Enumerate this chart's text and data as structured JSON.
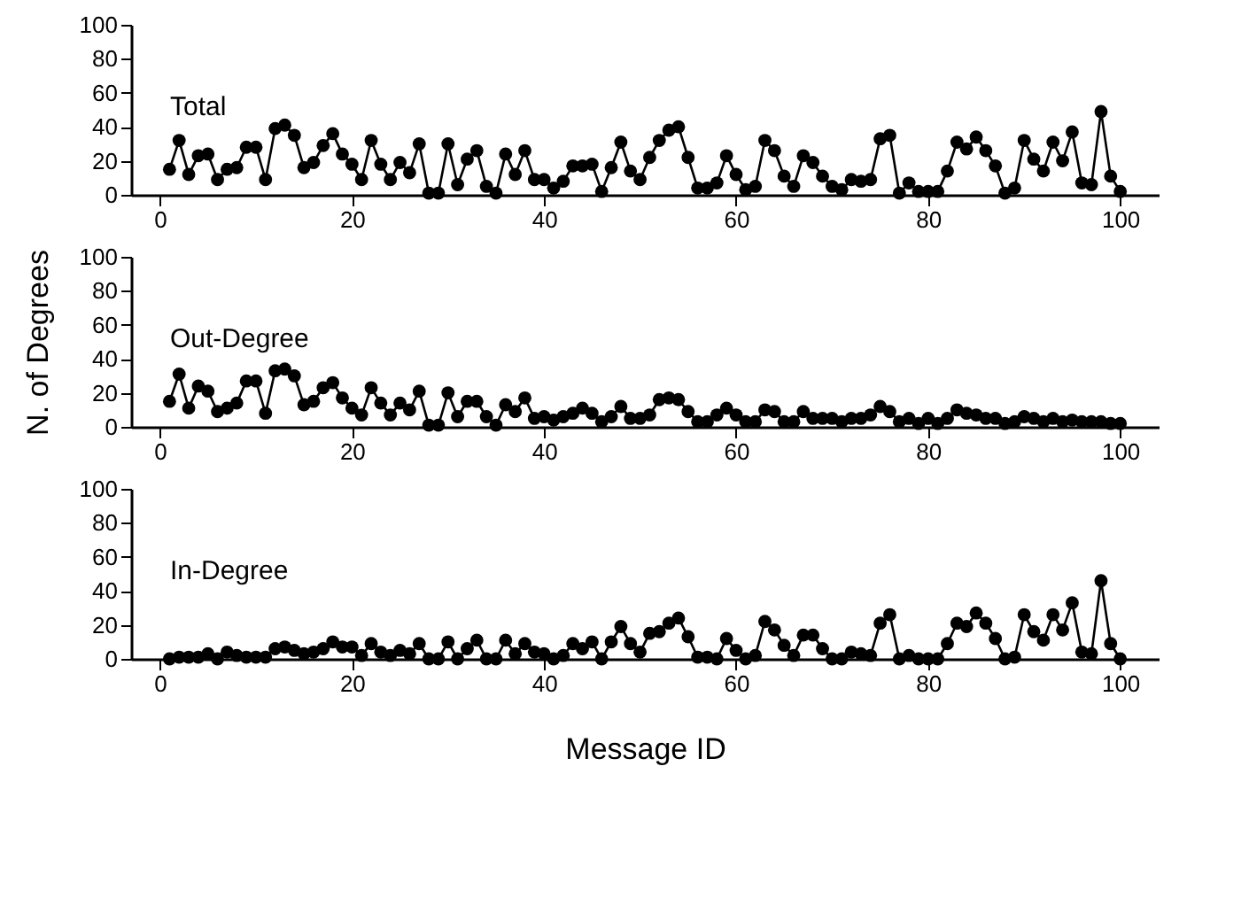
{
  "chart_data": [
    {
      "type": "line",
      "title": "Total",
      "marker": "circle",
      "x": [
        1,
        2,
        3,
        4,
        5,
        6,
        7,
        8,
        9,
        10,
        11,
        12,
        13,
        14,
        15,
        16,
        17,
        18,
        19,
        20,
        21,
        22,
        23,
        24,
        25,
        26,
        27,
        28,
        29,
        30,
        31,
        32,
        33,
        34,
        35,
        36,
        37,
        38,
        39,
        40,
        41,
        42,
        43,
        44,
        45,
        46,
        47,
        48,
        49,
        50,
        51,
        52,
        53,
        54,
        55,
        56,
        57,
        58,
        59,
        60,
        61,
        62,
        63,
        64,
        65,
        66,
        67,
        68,
        69,
        70,
        71,
        72,
        73,
        74,
        75,
        76,
        77,
        78,
        79,
        80,
        81,
        82,
        83,
        84,
        85,
        86,
        87,
        88,
        89,
        90,
        91,
        92,
        93,
        94,
        95,
        96,
        97,
        98,
        99,
        100
      ],
      "xlim": [
        -3,
        104
      ],
      "xticks": [
        0,
        20,
        40,
        60,
        80,
        100
      ],
      "ylim": [
        0,
        100
      ],
      "yticks": [
        0,
        20,
        40,
        60,
        80,
        100
      ],
      "series": [
        {
          "color": "#000000",
          "values": [
            15,
            32,
            12,
            23,
            24,
            9,
            15,
            16,
            28,
            28,
            9,
            39,
            41,
            35,
            16,
            19,
            29,
            36,
            24,
            18,
            9,
            32,
            18,
            9,
            19,
            13,
            30,
            1,
            1,
            30,
            6,
            21,
            26,
            5,
            1,
            24,
            12,
            26,
            9,
            9,
            4,
            8,
            17,
            17,
            18,
            2,
            16,
            31,
            14,
            9,
            22,
            32,
            38,
            40,
            22,
            4,
            4,
            7,
            23,
            12,
            3,
            5,
            32,
            26,
            11,
            5,
            23,
            19,
            11,
            5,
            3,
            9,
            8,
            9,
            33,
            35,
            1,
            7,
            2,
            2,
            2,
            14,
            31,
            27,
            34,
            26,
            17,
            1,
            4,
            32,
            21,
            14,
            31,
            20,
            37,
            7,
            6,
            49,
            11,
            2
          ]
        }
      ]
    },
    {
      "type": "line",
      "title": "Out-Degree",
      "ylabel": "N. of Degrees",
      "marker": "circle",
      "x": [
        1,
        2,
        3,
        4,
        5,
        6,
        7,
        8,
        9,
        10,
        11,
        12,
        13,
        14,
        15,
        16,
        17,
        18,
        19,
        20,
        21,
        22,
        23,
        24,
        25,
        26,
        27,
        28,
        29,
        30,
        31,
        32,
        33,
        34,
        35,
        36,
        37,
        38,
        39,
        40,
        41,
        42,
        43,
        44,
        45,
        46,
        47,
        48,
        49,
        50,
        51,
        52,
        53,
        54,
        55,
        56,
        57,
        58,
        59,
        60,
        61,
        62,
        63,
        64,
        65,
        66,
        67,
        68,
        69,
        70,
        71,
        72,
        73,
        74,
        75,
        76,
        77,
        78,
        79,
        80,
        81,
        82,
        83,
        84,
        85,
        86,
        87,
        88,
        89,
        90,
        91,
        92,
        93,
        94,
        95,
        96,
        97,
        98,
        99,
        100
      ],
      "xlim": [
        -3,
        104
      ],
      "xticks": [
        0,
        20,
        40,
        60,
        80,
        100
      ],
      "ylim": [
        0,
        100
      ],
      "yticks": [
        0,
        20,
        40,
        60,
        80,
        100
      ],
      "series": [
        {
          "color": "#000000",
          "values": [
            15,
            31,
            11,
            24,
            21,
            9,
            11,
            14,
            27,
            27,
            8,
            33,
            34,
            30,
            13,
            15,
            23,
            26,
            17,
            11,
            7,
            23,
            14,
            7,
            14,
            10,
            21,
            1,
            1,
            20,
            6,
            15,
            15,
            6,
            1,
            13,
            9,
            17,
            5,
            6,
            4,
            6,
            8,
            11,
            8,
            3,
            6,
            12,
            5,
            5,
            7,
            16,
            17,
            16,
            9,
            3,
            3,
            7,
            11,
            7,
            3,
            3,
            10,
            9,
            3,
            3,
            9,
            5,
            5,
            5,
            3,
            5,
            5,
            7,
            12,
            9,
            3,
            5,
            2,
            5,
            2,
            5,
            10,
            8,
            7,
            5,
            5,
            2,
            3,
            6,
            5,
            3,
            5,
            3,
            4,
            3,
            3,
            3,
            2,
            2
          ]
        }
      ]
    },
    {
      "type": "line",
      "title": "In-Degree",
      "xlabel": "Message ID",
      "marker": "circle",
      "x": [
        1,
        2,
        3,
        4,
        5,
        6,
        7,
        8,
        9,
        10,
        11,
        12,
        13,
        14,
        15,
        16,
        17,
        18,
        19,
        20,
        21,
        22,
        23,
        24,
        25,
        26,
        27,
        28,
        29,
        30,
        31,
        32,
        33,
        34,
        35,
        36,
        37,
        38,
        39,
        40,
        41,
        42,
        43,
        44,
        45,
        46,
        47,
        48,
        49,
        50,
        51,
        52,
        53,
        54,
        55,
        56,
        57,
        58,
        59,
        60,
        61,
        62,
        63,
        64,
        65,
        66,
        67,
        68,
        69,
        70,
        71,
        72,
        73,
        74,
        75,
        76,
        77,
        78,
        79,
        80,
        81,
        82,
        83,
        84,
        85,
        86,
        87,
        88,
        89,
        90,
        91,
        92,
        93,
        94,
        95,
        96,
        97,
        98,
        99,
        100
      ],
      "xlim": [
        -3,
        104
      ],
      "xticks": [
        0,
        20,
        40,
        60,
        80,
        100
      ],
      "ylim": [
        0,
        100
      ],
      "yticks": [
        0,
        20,
        40,
        60,
        80,
        100
      ],
      "series": [
        {
          "color": "#000000",
          "values": [
            0,
            1,
            1,
            1,
            3,
            0,
            4,
            2,
            1,
            1,
            1,
            6,
            7,
            5,
            3,
            4,
            6,
            10,
            7,
            7,
            2,
            9,
            4,
            2,
            5,
            3,
            9,
            0,
            0,
            10,
            0,
            6,
            11,
            0,
            0,
            11,
            3,
            9,
            4,
            3,
            0,
            2,
            9,
            6,
            10,
            0,
            10,
            19,
            9,
            4,
            15,
            16,
            21,
            24,
            13,
            1,
            1,
            0,
            12,
            5,
            0,
            2,
            22,
            17,
            8,
            2,
            14,
            14,
            6,
            0,
            0,
            4,
            3,
            2,
            21,
            26,
            0,
            2,
            0,
            0,
            0,
            9,
            21,
            19,
            27,
            21,
            12,
            0,
            1,
            26,
            16,
            11,
            26,
            17,
            33,
            4,
            3,
            46,
            9,
            0
          ]
        }
      ]
    }
  ]
}
